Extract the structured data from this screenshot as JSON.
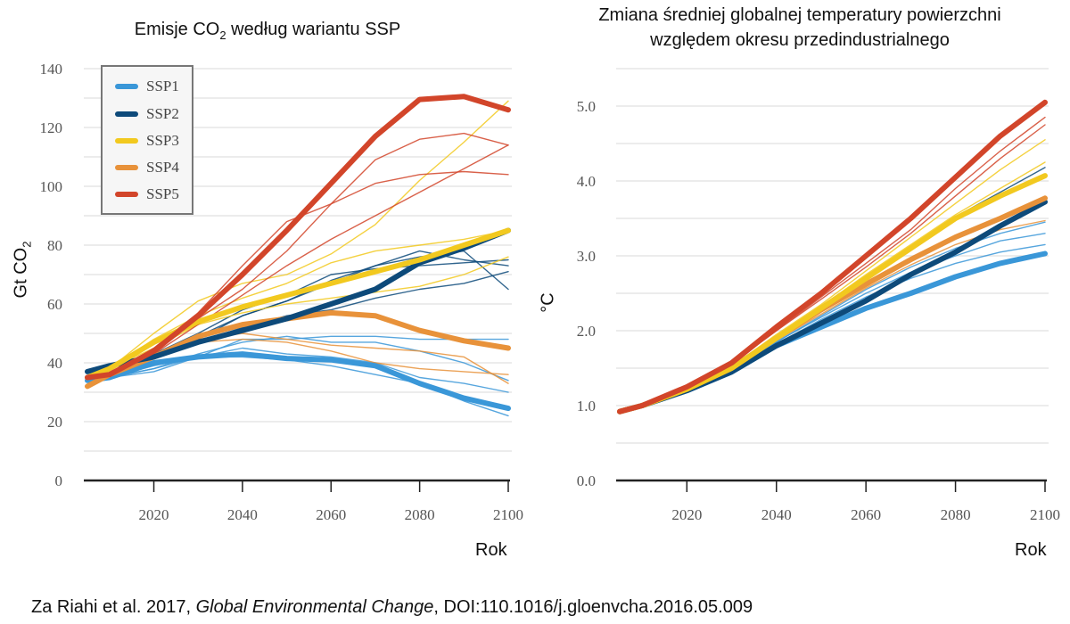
{
  "colors": {
    "SSP1": "#3a97d8",
    "SSP2": "#0d4a7a",
    "SSP3": "#f2c91f",
    "SSP4": "#e8923a",
    "SSP5": "#d2452a"
  },
  "chart_data": [
    {
      "type": "line",
      "title": {
        "pre": "Emisje CO",
        "sub": "2",
        "post": " według wariantu SSP"
      },
      "ylabel": {
        "pre": "Gt CO",
        "sub": "2"
      },
      "xlabel": "Rok",
      "x": [
        2005,
        2010,
        2020,
        2030,
        2040,
        2050,
        2060,
        2070,
        2080,
        2090,
        2100
      ],
      "xlim": [
        2005,
        2100
      ],
      "ylim": [
        0,
        140
      ],
      "xticks": [
        2020,
        2040,
        2060,
        2080,
        2100
      ],
      "yticks": [
        0,
        20,
        40,
        60,
        80,
        100,
        120,
        140
      ],
      "grid": true,
      "legend": {
        "placement": "top-left",
        "entries": [
          "SSP1",
          "SSP2",
          "SSP3",
          "SSP4",
          "SSP5"
        ]
      },
      "series": [
        {
          "name": "SSP1",
          "thin": true,
          "values": [
            34,
            35,
            37,
            42,
            48,
            48,
            49,
            49,
            48,
            48,
            48
          ]
        },
        {
          "name": "SSP1",
          "thin": true,
          "values": [
            34,
            35,
            38,
            43,
            47,
            49,
            47,
            47,
            44,
            40,
            34
          ]
        },
        {
          "name": "SSP1",
          "thin": true,
          "values": [
            34,
            35,
            38,
            42,
            45,
            43,
            42,
            40,
            35,
            33,
            30
          ]
        },
        {
          "name": "SSP1",
          "thin": true,
          "values": [
            34,
            35,
            39,
            42,
            42,
            41,
            39,
            36,
            33,
            27,
            22
          ]
        },
        {
          "name": "SSP4",
          "thin": true,
          "values": [
            32,
            36,
            42,
            48,
            50,
            48,
            46,
            45,
            44,
            42,
            33
          ]
        },
        {
          "name": "SSP4",
          "thin": true,
          "values": [
            32,
            36,
            42,
            47,
            48,
            47,
            44,
            40,
            38,
            37,
            36
          ]
        },
        {
          "name": "SSP2",
          "thin": true,
          "values": [
            37,
            39,
            43,
            50,
            58,
            63,
            70,
            72,
            73,
            74,
            75
          ]
        },
        {
          "name": "SSP2",
          "thin": true,
          "values": [
            37,
            39,
            42,
            48,
            56,
            61,
            67,
            73,
            76,
            78,
            65
          ]
        },
        {
          "name": "SSP2",
          "thin": true,
          "values": [
            37,
            39,
            42,
            47,
            52,
            56,
            58,
            62,
            65,
            67,
            71
          ]
        },
        {
          "name": "SSP2",
          "thin": true,
          "values": [
            37,
            39,
            42,
            49,
            56,
            61,
            68,
            73,
            78,
            75,
            73
          ]
        },
        {
          "name": "SSP3",
          "thin": true,
          "values": [
            35,
            38,
            50,
            61,
            67,
            70,
            77,
            87,
            102,
            115,
            129
          ]
        },
        {
          "name": "SSP3",
          "thin": true,
          "values": [
            35,
            38,
            48,
            56,
            62,
            67,
            74,
            78,
            80,
            82,
            85
          ]
        },
        {
          "name": "SSP3",
          "thin": true,
          "values": [
            35,
            38,
            45,
            53,
            57,
            60,
            62,
            64,
            66,
            70,
            76
          ]
        },
        {
          "name": "SSP5",
          "thin": true,
          "values": [
            35,
            36,
            45,
            57,
            73,
            88,
            94,
            101,
            104,
            105,
            104
          ]
        },
        {
          "name": "SSP5",
          "thin": true,
          "values": [
            35,
            36,
            44,
            55,
            65,
            78,
            94,
            109,
            116,
            118,
            114
          ]
        },
        {
          "name": "SSP5",
          "thin": true,
          "values": [
            35,
            36,
            43,
            53,
            63,
            73,
            82,
            90,
            98,
            106,
            114
          ]
        },
        {
          "name": "SSP1",
          "thin": false,
          "values": [
            34,
            35,
            40,
            42,
            43,
            41.5,
            41,
            39,
            33,
            28,
            24.5
          ]
        },
        {
          "name": "SSP4",
          "thin": false,
          "values": [
            32,
            36,
            42,
            49,
            53,
            55,
            57,
            56,
            51,
            47.5,
            45
          ]
        },
        {
          "name": "SSP2",
          "thin": false,
          "values": [
            37,
            39,
            42,
            47,
            51,
            55,
            60,
            65,
            74,
            79,
            85
          ]
        },
        {
          "name": "SSP3",
          "thin": false,
          "values": [
            35,
            38,
            47,
            54,
            59,
            63,
            67,
            71,
            75,
            80,
            85
          ]
        },
        {
          "name": "SSP5",
          "thin": false,
          "values": [
            35,
            36,
            44,
            56,
            70,
            85,
            101,
            117,
            129.5,
            130.5,
            126
          ]
        }
      ]
    },
    {
      "type": "line",
      "title": {
        "line1": "Zmiana średniej globalnej temperatury powierzchni",
        "line2": "względem okresu przedindustrialnego"
      },
      "ylabel": "°C",
      "xlabel": "Rok",
      "x": [
        2005,
        2010,
        2020,
        2030,
        2040,
        2050,
        2060,
        2070,
        2080,
        2090,
        2100
      ],
      "xlim": [
        2005,
        2100
      ],
      "ylim": [
        0,
        5.5
      ],
      "xticks": [
        2020,
        2040,
        2060,
        2080,
        2100
      ],
      "yticks": [
        "0.0",
        "1.0",
        "2.0",
        "3.0",
        "4.0",
        "5.0"
      ],
      "grid": true,
      "series": [
        {
          "name": "SSP1",
          "thin": true,
          "values": [
            0.92,
            1.0,
            1.2,
            1.47,
            1.85,
            2.2,
            2.55,
            2.85,
            3.1,
            3.3,
            3.45
          ]
        },
        {
          "name": "SSP1",
          "thin": true,
          "values": [
            0.92,
            1.0,
            1.2,
            1.47,
            1.85,
            2.18,
            2.5,
            2.78,
            3.0,
            3.2,
            3.3
          ]
        },
        {
          "name": "SSP1",
          "thin": true,
          "values": [
            0.92,
            1.0,
            1.2,
            1.46,
            1.82,
            2.15,
            2.45,
            2.7,
            2.9,
            3.05,
            3.15
          ]
        },
        {
          "name": "SSP4",
          "thin": true,
          "values": [
            0.92,
            1.0,
            1.21,
            1.48,
            1.87,
            2.22,
            2.57,
            2.88,
            3.15,
            3.35,
            3.47
          ]
        },
        {
          "name": "SSP2",
          "thin": true,
          "values": [
            0.92,
            1.0,
            1.22,
            1.5,
            1.92,
            2.32,
            2.72,
            3.12,
            3.52,
            3.85,
            4.18
          ]
        },
        {
          "name": "SSP3",
          "thin": true,
          "values": [
            0.92,
            1.0,
            1.23,
            1.52,
            1.95,
            2.35,
            2.8,
            3.25,
            3.7,
            4.15,
            4.55
          ]
        },
        {
          "name": "SSP3",
          "thin": true,
          "values": [
            0.92,
            1.0,
            1.22,
            1.5,
            1.92,
            2.32,
            2.75,
            3.15,
            3.55,
            3.9,
            4.25
          ]
        },
        {
          "name": "SSP5",
          "thin": true,
          "values": [
            0.92,
            1.0,
            1.25,
            1.56,
            2.0,
            2.45,
            2.9,
            3.35,
            3.9,
            4.4,
            4.85
          ]
        },
        {
          "name": "SSP5",
          "thin": true,
          "values": [
            0.92,
            1.0,
            1.25,
            1.56,
            2.0,
            2.42,
            2.85,
            3.3,
            3.8,
            4.3,
            4.75
          ]
        },
        {
          "name": "SSP1",
          "thin": false,
          "values": [
            0.92,
            1.0,
            1.2,
            1.45,
            1.8,
            2.05,
            2.3,
            2.5,
            2.72,
            2.9,
            3.03
          ]
        },
        {
          "name": "SSP2",
          "thin": false,
          "values": [
            0.92,
            1.0,
            1.2,
            1.45,
            1.8,
            2.1,
            2.4,
            2.75,
            3.05,
            3.4,
            3.72
          ]
        },
        {
          "name": "SSP4",
          "thin": false,
          "values": [
            0.92,
            1.0,
            1.22,
            1.5,
            1.9,
            2.28,
            2.62,
            2.95,
            3.25,
            3.5,
            3.77
          ]
        },
        {
          "name": "SSP3",
          "thin": false,
          "values": [
            0.92,
            1.0,
            1.22,
            1.5,
            1.9,
            2.3,
            2.7,
            3.1,
            3.5,
            3.8,
            4.07
          ]
        },
        {
          "name": "SSP5",
          "thin": false,
          "values": [
            0.92,
            1.0,
            1.25,
            1.57,
            2.05,
            2.5,
            3.0,
            3.5,
            4.05,
            4.6,
            5.05
          ]
        }
      ]
    }
  ],
  "citation": {
    "pre": "Za Riahi et al. 2017, ",
    "journal": "Global Environmental Change",
    "post": ", DOI:110.1016/j.gloenvcha.2016.05.009"
  }
}
